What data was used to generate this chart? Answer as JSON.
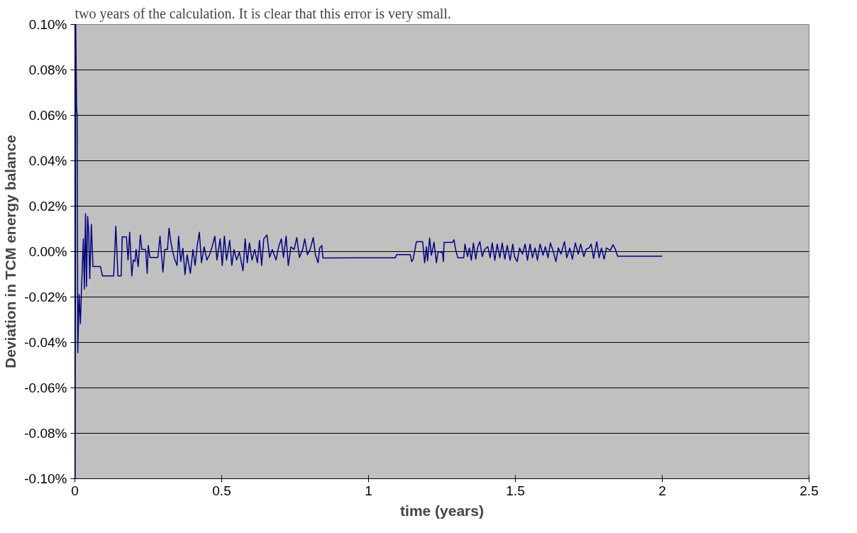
{
  "chart_data": {
    "type": "line",
    "xlabel": "time (years)",
    "ylabel": "Deviation in TCM energy balance",
    "annotations": [
      "two years of the calculation. It is clear that this error is very small."
    ],
    "xlim": [
      0,
      2.5
    ],
    "xticks": [
      0,
      0.5,
      1,
      1.5,
      2,
      2.5
    ],
    "ylim": [
      -0.1,
      0.1
    ],
    "yticks": [
      {
        "value": -0.1,
        "label": "-0.10%"
      },
      {
        "value": -0.08,
        "label": "-0.08%"
      },
      {
        "value": -0.06,
        "label": "-0.06%"
      },
      {
        "value": -0.04,
        "label": "-0.04%"
      },
      {
        "value": -0.02,
        "label": "-0.02%"
      },
      {
        "value": 0,
        "label": "0.00%"
      },
      {
        "value": 0.02,
        "label": "0.02%"
      },
      {
        "value": 0.04,
        "label": "0.04%"
      },
      {
        "value": 0.06,
        "label": "0.06%"
      },
      {
        "value": 0.08,
        "label": "0.08%"
      },
      {
        "value": 0.1,
        "label": "0.10%"
      }
    ],
    "grid": "y",
    "marker": "none",
    "line_style": "solid",
    "series": [
      {
        "color": "#000080",
        "x": [
          0.0,
          0.001,
          0.003,
          0.006,
          0.008,
          0.0099,
          0.0145,
          0.019,
          0.0217,
          0.0254,
          0.029,
          0.0326,
          0.0362,
          0.0398,
          0.0435,
          0.0471,
          0.0507,
          0.0562,
          0.0616,
          0.087,
          0.0942,
          0.1323,
          0.1395,
          0.1468,
          0.1576,
          0.1613,
          0.1757,
          0.1812,
          0.1866,
          0.1939,
          0.1993,
          0.2047,
          0.2084,
          0.2156,
          0.2229,
          0.2283,
          0.241,
          0.2464,
          0.25,
          0.2555,
          0.2827,
          0.2899,
          0.2999,
          0.3062,
          0.3153,
          0.3207,
          0.3261,
          0.3316,
          0.3406,
          0.3479,
          0.3533,
          0.3606,
          0.3678,
          0.3751,
          0.3823,
          0.3932,
          0.4023,
          0.4095,
          0.4167,
          0.424,
          0.4312,
          0.4403,
          0.4494,
          0.4585,
          0.4675,
          0.4766,
          0.4838,
          0.4947,
          0.5019,
          0.5092,
          0.5164,
          0.5273,
          0.5345,
          0.5418,
          0.5509,
          0.5599,
          0.5726,
          0.5798,
          0.5871,
          0.5943,
          0.6034,
          0.6124,
          0.6215,
          0.6287,
          0.636,
          0.6432,
          0.6541,
          0.6632,
          0.6722,
          0.6849,
          0.694,
          0.703,
          0.7103,
          0.7193,
          0.7266,
          0.7357,
          0.7465,
          0.7556,
          0.7647,
          0.7755,
          0.7828,
          0.7918,
          0.8009,
          0.8118,
          0.819,
          0.8281,
          0.8335,
          0.8408,
          0.8444,
          0.99,
          1.091,
          1.096,
          1.142,
          1.147,
          1.152,
          1.163,
          1.184,
          1.191,
          1.197,
          1.201,
          1.208,
          1.214,
          1.223,
          1.231,
          1.237,
          1.252,
          1.255,
          1.257,
          1.286,
          1.291,
          1.296,
          1.304,
          1.324,
          1.328,
          1.337,
          1.343,
          1.35,
          1.357,
          1.365,
          1.372,
          1.379,
          1.387,
          1.396,
          1.406,
          1.414,
          1.421,
          1.43,
          1.438,
          1.447,
          1.455,
          1.464,
          1.472,
          1.482,
          1.491,
          1.497,
          1.506,
          1.514,
          1.524,
          1.533,
          1.541,
          1.55,
          1.558,
          1.567,
          1.575,
          1.584,
          1.594,
          1.602,
          1.611,
          1.619,
          1.628,
          1.638,
          1.646,
          1.655,
          1.667,
          1.675,
          1.685,
          1.694,
          1.704,
          1.714,
          1.722,
          1.733,
          1.741,
          1.751,
          1.758,
          1.766,
          1.777,
          1.785,
          1.793,
          1.802,
          1.81,
          1.823,
          1.832,
          1.84,
          1.848,
          2.0
        ],
        "values": [
          0.1,
          -0.1,
          0.1,
          0.063,
          0.06,
          -0.0445,
          -0.0189,
          -0.0317,
          -0.02,
          -0.0072,
          0.0056,
          -0.0165,
          0.0167,
          -0.0154,
          0.0155,
          0.0091,
          -0.0119,
          0.012,
          -0.0066,
          -0.0066,
          -0.0107,
          -0.0107,
          0.0112,
          -0.0107,
          -0.0107,
          0.0065,
          0.0065,
          -0.0037,
          0.0085,
          -0.0107,
          -0.0037,
          -0.0043,
          0.0009,
          -0.0066,
          0.0073,
          0.0009,
          0.0009,
          -0.0096,
          0.0027,
          -0.0026,
          -0.0026,
          0.0068,
          -0.009,
          0.0009,
          0.0009,
          0.0103,
          0.005,
          0.0009,
          -0.0037,
          -0.0061,
          0.0068,
          -0.0043,
          0.0015,
          -0.0101,
          -0.0014,
          -0.0096,
          0.0009,
          -0.0061,
          0.0027,
          0.0085,
          -0.0049,
          0.0021,
          -0.0037,
          -0.0014,
          0.0021,
          0.0068,
          -0.0037,
          0.0056,
          -0.0061,
          0.0068,
          -0.0037,
          0.005,
          -0.0061,
          0.0009,
          -0.0037,
          -0.0002,
          -0.0084,
          0.0056,
          -0.0049,
          0.0038,
          -0.0037,
          0.0009,
          -0.0049,
          0.005,
          -0.0061,
          0.0056,
          0.0073,
          -0.0026,
          0.0009,
          -0.0037,
          0.0021,
          0.0056,
          -0.0026,
          0.0068,
          -0.0061,
          0.0021,
          0.0009,
          0.0062,
          -0.0026,
          0.0009,
          0.0056,
          -0.0014,
          0.0009,
          0.0062,
          -0.0014,
          -0.0049,
          0.0015,
          0.0027,
          -0.0028,
          -0.0027,
          -0.0027,
          -0.0013,
          -0.0013,
          -0.0044,
          -0.0033,
          0.0044,
          0.0044,
          -0.0049,
          0.0022,
          -0.0041,
          0.006,
          -0.0016,
          0.0041,
          -0.0049,
          0.0,
          -0.0005,
          -0.0044,
          0.0041,
          0.0041,
          0.0052,
          0.0011,
          -0.0027,
          -0.0027,
          0.0033,
          -0.0022,
          0.0016,
          -0.0038,
          0.0038,
          -0.0033,
          0.0022,
          0.0044,
          -0.0022,
          0.0011,
          0.0022,
          -0.0027,
          0.0038,
          -0.0038,
          0.0033,
          -0.0027,
          0.0038,
          -0.0033,
          0.0027,
          -0.0038,
          0.0033,
          -0.0022,
          -0.0044,
          0.0016,
          -0.0011,
          0.0033,
          -0.0038,
          0.0033,
          -0.0027,
          0.0016,
          -0.0038,
          0.0033,
          -0.0016,
          0.0022,
          -0.0027,
          0.0038,
          0.0005,
          -0.0044,
          0.0016,
          -0.0011,
          0.0044,
          -0.0027,
          0.0016,
          -0.0033,
          0.0038,
          -0.0011,
          0.0033,
          -0.0022,
          0.0011,
          0.0016,
          0.0033,
          -0.003,
          0.0044,
          -0.0027,
          0.0016,
          -0.0033,
          0.0016,
          0.0005,
          0.003,
          0.0011,
          -0.002,
          -0.002
        ]
      }
    ]
  }
}
